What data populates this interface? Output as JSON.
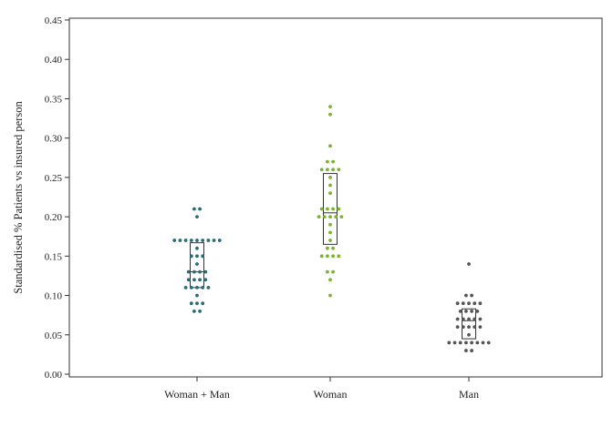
{
  "chart_data": {
    "type": "scatter",
    "subtype": "dot-strip-with-box",
    "title": "",
    "xlabel": "",
    "ylabel": "Standardised % Patients vs insured person",
    "ylim": [
      0,
      0.45
    ],
    "yticks": [
      "0.00",
      "0.05",
      "0.10",
      "0.15",
      "0.20",
      "0.25",
      "0.30",
      "0.35",
      "0.40",
      "0.45"
    ],
    "grid": false,
    "categories": [
      "Woman + Man",
      "Woman",
      "Man"
    ],
    "series": [
      {
        "category": "Woman + Man",
        "color": "#2b6b73",
        "box": {
          "q1": 0.11,
          "median": 0.13,
          "q3": 0.167
        },
        "values": [
          0.21,
          0.21,
          0.2,
          0.17,
          0.17,
          0.17,
          0.17,
          0.17,
          0.17,
          0.17,
          0.17,
          0.17,
          0.16,
          0.15,
          0.15,
          0.15,
          0.14,
          0.13,
          0.13,
          0.13,
          0.13,
          0.12,
          0.12,
          0.12,
          0.12,
          0.11,
          0.11,
          0.11,
          0.11,
          0.11,
          0.1,
          0.09,
          0.09,
          0.09,
          0.08,
          0.08
        ]
      },
      {
        "category": "Woman",
        "color": "#7ab32e",
        "box": {
          "q1": 0.165,
          "median": 0.205,
          "q3": 0.255
        },
        "values": [
          0.34,
          0.33,
          0.29,
          0.27,
          0.27,
          0.26,
          0.26,
          0.26,
          0.26,
          0.25,
          0.24,
          0.23,
          0.21,
          0.21,
          0.21,
          0.21,
          0.2,
          0.2,
          0.2,
          0.2,
          0.2,
          0.19,
          0.18,
          0.17,
          0.16,
          0.16,
          0.15,
          0.15,
          0.15,
          0.15,
          0.13,
          0.13,
          0.12,
          0.1
        ]
      },
      {
        "category": "Man",
        "color": "#555555",
        "box": {
          "q1": 0.045,
          "median": 0.068,
          "q3": 0.083
        },
        "values": [
          0.14,
          0.1,
          0.1,
          0.09,
          0.09,
          0.09,
          0.09,
          0.09,
          0.08,
          0.08,
          0.08,
          0.08,
          0.07,
          0.07,
          0.07,
          0.07,
          0.07,
          0.06,
          0.06,
          0.06,
          0.06,
          0.06,
          0.05,
          0.04,
          0.04,
          0.04,
          0.04,
          0.04,
          0.04,
          0.04,
          0.04,
          0.03,
          0.03
        ]
      }
    ]
  }
}
